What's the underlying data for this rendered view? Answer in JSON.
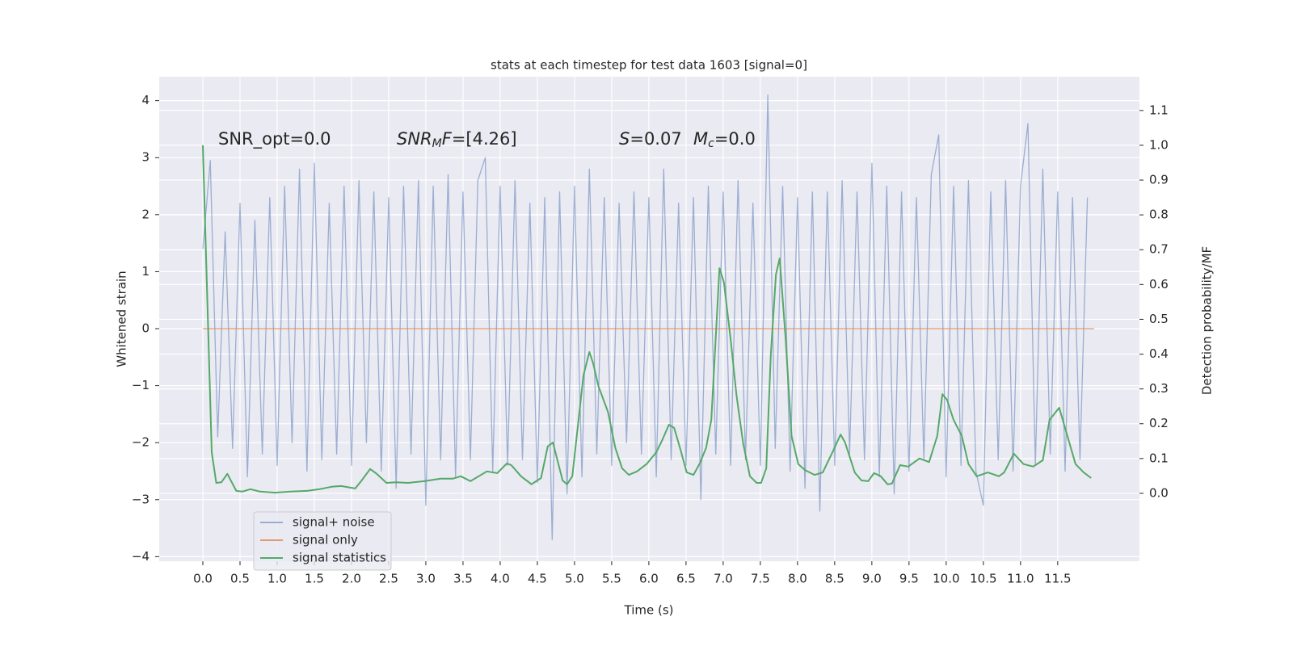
{
  "chart_data": {
    "type": "line",
    "title": "stats at each timestep for test data 1603 [signal=0]",
    "xlabel": "Time (s)",
    "ylabel": "Whitened strain",
    "y2label": "Detection probability/MF",
    "annotations": [
      [
        {
          "text": "SNR_opt=0.0",
          "style": "normal"
        }
      ],
      [
        {
          "text": "SNR",
          "style": "italic"
        },
        {
          "text": "M",
          "style": "sub"
        },
        {
          "text": "F",
          "style": "italic"
        },
        {
          "text": "=[4.26]",
          "style": "normal"
        }
      ],
      [
        {
          "text": "S",
          "style": "italic"
        },
        {
          "text": "=0.07",
          "style": "normal"
        }
      ],
      [
        {
          "text": "M",
          "style": "italic"
        },
        {
          "text": "c",
          "style": "sub"
        },
        {
          "text": "=0.0",
          "style": "normal"
        }
      ]
    ],
    "xlim": [
      -0.587,
      12.6
    ],
    "ylim": [
      -4.08,
      4.42
    ],
    "y2lim": [
      -0.195,
      1.197
    ],
    "xticks": [
      {
        "value": 0,
        "label": "0.0"
      },
      {
        "value": 0.5,
        "label": "0.5"
      },
      {
        "value": 1,
        "label": "1.0"
      },
      {
        "value": 1.5,
        "label": "1.5"
      },
      {
        "value": 2,
        "label": "2.0"
      },
      {
        "value": 2.5,
        "label": "2.5"
      },
      {
        "value": 3,
        "label": "3.0"
      },
      {
        "value": 3.5,
        "label": "3.5"
      },
      {
        "value": 4,
        "label": "4.0"
      },
      {
        "value": 4.5,
        "label": "4.5"
      },
      {
        "value": 5,
        "label": "5.0"
      },
      {
        "value": 5.5,
        "label": "5.5"
      },
      {
        "value": 6,
        "label": "6.0"
      },
      {
        "value": 6.5,
        "label": "6.5"
      },
      {
        "value": 7,
        "label": "7.0"
      },
      {
        "value": 7.5,
        "label": "7.5"
      },
      {
        "value": 8,
        "label": "8.0"
      },
      {
        "value": 8.5,
        "label": "8.5"
      },
      {
        "value": 9,
        "label": "9.0"
      },
      {
        "value": 9.5,
        "label": "9.5"
      },
      {
        "value": 10,
        "label": "10.0"
      },
      {
        "value": 10.5,
        "label": "10.5"
      },
      {
        "value": 11,
        "label": "11.0"
      },
      {
        "value": 11.5,
        "label": "11.5"
      }
    ],
    "yticks": [
      {
        "value": -4,
        "label": "−4"
      },
      {
        "value": -3,
        "label": "−3"
      },
      {
        "value": -2,
        "label": "−2"
      },
      {
        "value": -1,
        "label": "−1"
      },
      0,
      1,
      2,
      3,
      4
    ],
    "y2ticks": [
      {
        "value": 0,
        "label": "0.0"
      },
      {
        "value": 0.1,
        "label": "0.1"
      },
      {
        "value": 0.2,
        "label": "0.2"
      },
      {
        "value": 0.3,
        "label": "0.3"
      },
      {
        "value": 0.4,
        "label": "0.4"
      },
      {
        "value": 0.5,
        "label": "0.5"
      },
      {
        "value": 0.6,
        "label": "0.6"
      },
      {
        "value": 0.7,
        "label": "0.7"
      },
      {
        "value": 0.8,
        "label": "0.8"
      },
      {
        "value": 0.9,
        "label": "0.9"
      },
      {
        "value": 1,
        "label": "1.0"
      },
      {
        "value": 1.1,
        "label": "1.1"
      }
    ],
    "grid": true,
    "legend": "lower left",
    "series": [
      {
        "name": "signal+ noise",
        "color": "#4c72b0",
        "opacity": 0.5,
        "x": [
          0,
          0.1,
          0.2,
          0.3,
          0.4,
          0.5,
          0.6,
          0.7,
          0.8,
          0.9,
          1,
          1.1,
          1.2,
          1.3,
          1.4,
          1.5,
          1.6,
          1.7,
          1.8,
          1.9,
          2,
          2.1,
          2.2,
          2.3,
          2.4,
          2.5,
          2.6,
          2.7,
          2.8,
          2.9,
          3,
          3.1,
          3.2,
          3.3,
          3.4,
          3.5,
          3.6,
          3.7,
          3.8,
          3.9,
          4,
          4.1,
          4.2,
          4.3,
          4.4,
          4.5,
          4.6,
          4.7,
          4.8,
          4.9,
          5,
          5.1,
          5.2,
          5.3,
          5.4,
          5.5,
          5.6,
          5.7,
          5.8,
          5.9,
          6,
          6.1,
          6.2,
          6.3,
          6.4,
          6.5,
          6.6,
          6.7,
          6.8,
          6.9,
          7,
          7.1,
          7.2,
          7.3,
          7.4,
          7.5,
          7.6,
          7.7,
          7.8,
          7.9,
          8,
          8.1,
          8.2,
          8.3,
          8.4,
          8.5,
          8.6,
          8.7,
          8.8,
          8.9,
          9,
          9.1,
          9.2,
          9.3,
          9.4,
          9.5,
          9.6,
          9.7,
          9.8,
          9.9,
          10,
          10.1,
          10.2,
          10.3,
          10.4,
          10.5,
          10.6,
          10.7,
          10.8,
          10.9,
          11,
          11.1,
          11.2,
          11.3,
          11.4,
          11.5,
          11.6,
          11.7,
          11.8,
          11.9
        ],
        "values": [
          1.4,
          2.95,
          -1.9,
          1.7,
          -2.1,
          2.2,
          -2.6,
          1.9,
          -2.2,
          2.3,
          -2.4,
          2.5,
          -2.0,
          2.8,
          -2.5,
          2.9,
          -2.3,
          2.2,
          -2.2,
          2.5,
          -2.4,
          2.6,
          -2.0,
          2.4,
          -2.5,
          2.3,
          -2.8,
          2.5,
          -2.2,
          2.6,
          -3.1,
          2.5,
          -2.3,
          2.7,
          -2.6,
          2.4,
          -2.3,
          2.6,
          3.0,
          -2.5,
          2.5,
          -2.4,
          2.6,
          -2.3,
          2.2,
          -2.7,
          2.3,
          -3.7,
          2.4,
          -2.9,
          2.5,
          -2.6,
          2.8,
          -2.2,
          2.3,
          -2.4,
          2.2,
          -2.0,
          2.4,
          -2.2,
          2.3,
          -2.6,
          2.8,
          -2.3,
          2.2,
          -2.4,
          2.3,
          -3.0,
          2.5,
          -2.2,
          2.4,
          -2.4,
          2.6,
          -2.3,
          2.2,
          -2.4,
          4.1,
          -2.1,
          2.5,
          -2.5,
          2.3,
          -2.8,
          2.4,
          -3.2,
          2.4,
          -2.4,
          2.6,
          -2.2,
          2.4,
          -2.3,
          2.9,
          -2.6,
          2.5,
          -2.9,
          2.4,
          -2.5,
          2.3,
          -2.3,
          2.7,
          3.4,
          -2.6,
          2.5,
          -2.4,
          2.6,
          -2.5,
          -3.1,
          2.4,
          -2.3,
          2.6,
          -2.5,
          2.5,
          3.6,
          -2.4,
          2.8,
          -2.2,
          2.4,
          -2.5,
          2.3,
          -2.3,
          2.3
        ]
      },
      {
        "name": "signal only",
        "color": "#dd8452",
        "opacity": 0.8,
        "x": [
          0,
          11.99
        ],
        "values": [
          0,
          0
        ]
      },
      {
        "name": "signal statistics",
        "color": "#55a868",
        "opacity": 1,
        "axis": "y2",
        "x": [
          0,
          0.12,
          0.18,
          0.25,
          0.33,
          0.45,
          0.53,
          0.64,
          0.77,
          0.97,
          1.18,
          1.4,
          1.57,
          1.73,
          1.86,
          2.05,
          2.13,
          2.25,
          2.34,
          2.47,
          2.6,
          2.76,
          2.98,
          3.2,
          3.36,
          3.47,
          3.6,
          3.71,
          3.82,
          3.96,
          4.09,
          4.15,
          4.28,
          4.42,
          4.55,
          4.64,
          4.71,
          4.77,
          4.84,
          4.9,
          4.97,
          5.03,
          5.12,
          5.2,
          5.25,
          5.32,
          5.45,
          5.55,
          5.64,
          5.73,
          5.84,
          5.97,
          6.1,
          6.18,
          6.27,
          6.34,
          6.42,
          6.51,
          6.6,
          6.68,
          6.77,
          6.84,
          6.95,
          7.01,
          7.1,
          7.18,
          7.27,
          7.36,
          7.45,
          7.51,
          7.58,
          7.64,
          7.71,
          7.76,
          7.84,
          7.92,
          8.01,
          8.1,
          8.23,
          8.34,
          8.47,
          8.58,
          8.64,
          8.77,
          8.86,
          8.95,
          9.03,
          9.12,
          9.21,
          9.27,
          9.38,
          9.49,
          9.64,
          9.77,
          9.88,
          9.95,
          10.01,
          10.1,
          10.21,
          10.3,
          10.41,
          10.56,
          10.71,
          10.78,
          10.91,
          11.04,
          11.17,
          11.3,
          11.39,
          11.52,
          11.63,
          11.74,
          11.85,
          11.95
        ],
        "values": [
          1.0,
          0.118,
          0.03,
          0.032,
          0.056,
          0.007,
          0.005,
          0.012,
          0.005,
          0.002,
          0.005,
          0.007,
          0.012,
          0.019,
          0.021,
          0.014,
          0.035,
          0.07,
          0.056,
          0.03,
          0.032,
          0.03,
          0.035,
          0.042,
          0.042,
          0.049,
          0.035,
          0.049,
          0.063,
          0.058,
          0.086,
          0.081,
          0.049,
          0.026,
          0.044,
          0.135,
          0.146,
          0.095,
          0.037,
          0.026,
          0.049,
          0.165,
          0.339,
          0.406,
          0.374,
          0.309,
          0.234,
          0.13,
          0.072,
          0.053,
          0.063,
          0.084,
          0.118,
          0.153,
          0.197,
          0.188,
          0.13,
          0.06,
          0.053,
          0.084,
          0.13,
          0.211,
          0.647,
          0.606,
          0.443,
          0.281,
          0.142,
          0.049,
          0.03,
          0.03,
          0.072,
          0.397,
          0.629,
          0.675,
          0.443,
          0.165,
          0.084,
          0.067,
          0.053,
          0.06,
          0.118,
          0.169,
          0.146,
          0.06,
          0.037,
          0.035,
          0.058,
          0.049,
          0.026,
          0.028,
          0.081,
          0.077,
          0.1,
          0.09,
          0.165,
          0.285,
          0.269,
          0.211,
          0.165,
          0.084,
          0.049,
          0.06,
          0.049,
          0.06,
          0.114,
          0.084,
          0.077,
          0.095,
          0.211,
          0.246,
          0.165,
          0.084,
          0.06,
          0.044
        ]
      }
    ]
  }
}
